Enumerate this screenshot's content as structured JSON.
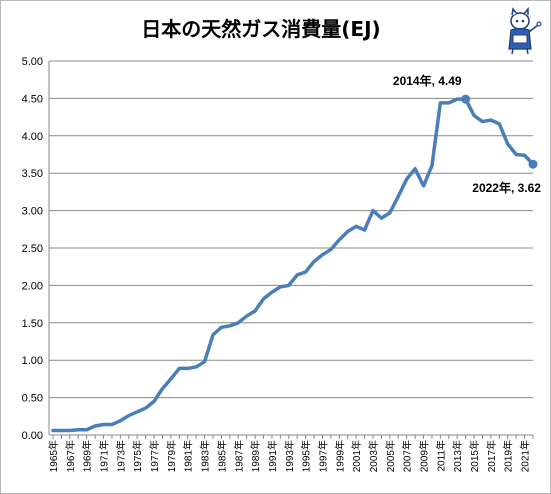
{
  "chart_data": {
    "type": "line",
    "title": "日本の天然ガス消費量(EJ)",
    "x": [
      1965,
      1966,
      1967,
      1968,
      1969,
      1970,
      1971,
      1972,
      1973,
      1974,
      1975,
      1976,
      1977,
      1978,
      1979,
      1980,
      1981,
      1982,
      1983,
      1984,
      1985,
      1986,
      1987,
      1988,
      1989,
      1990,
      1991,
      1992,
      1993,
      1994,
      1995,
      1996,
      1997,
      1998,
      1999,
      2000,
      2001,
      2002,
      2003,
      2004,
      2005,
      2006,
      2007,
      2008,
      2009,
      2010,
      2011,
      2012,
      2013,
      2014,
      2015,
      2016,
      2017,
      2018,
      2019,
      2020,
      2021,
      2022
    ],
    "x_tick_labels": [
      "1965年",
      "1967年",
      "1969年",
      "1971年",
      "1973年",
      "1975年",
      "1977年",
      "1979年",
      "1981年",
      "1983年",
      "1985年",
      "1987年",
      "1989年",
      "1991年",
      "1993年",
      "1995年",
      "1997年",
      "1999年",
      "2001年",
      "2003年",
      "2005年",
      "2007年",
      "2009年",
      "2011年",
      "2013年",
      "2015年",
      "2017年",
      "2019年",
      "2021年"
    ],
    "series": [
      {
        "name": "",
        "color": "#4a7ebb",
        "values": [
          0.06,
          0.06,
          0.06,
          0.07,
          0.07,
          0.12,
          0.14,
          0.14,
          0.19,
          0.26,
          0.31,
          0.36,
          0.45,
          0.62,
          0.75,
          0.89,
          0.89,
          0.91,
          0.98,
          1.34,
          1.44,
          1.46,
          1.5,
          1.59,
          1.66,
          1.82,
          1.91,
          1.98,
          2.0,
          2.14,
          2.18,
          2.32,
          2.41,
          2.48,
          2.61,
          2.72,
          2.79,
          2.74,
          3.0,
          2.9,
          2.97,
          3.19,
          3.42,
          3.56,
          3.33,
          3.6,
          4.44,
          4.44,
          4.49,
          4.49,
          4.27,
          4.19,
          4.21,
          4.16,
          3.89,
          3.75,
          3.74,
          3.62
        ]
      }
    ],
    "ylim": [
      0,
      5
    ],
    "y_ticks": [
      "0.00",
      "0.50",
      "1.00",
      "1.50",
      "2.00",
      "2.50",
      "3.00",
      "3.50",
      "4.00",
      "4.50",
      "5.00"
    ],
    "grid": true,
    "annotations": [
      {
        "text": "2014年, 4.49",
        "x": 2014,
        "y": 4.49
      },
      {
        "text": "2022年, 3.62",
        "x": 2022,
        "y": 3.62
      }
    ]
  },
  "mascot_icon": "mascot-character-icon"
}
